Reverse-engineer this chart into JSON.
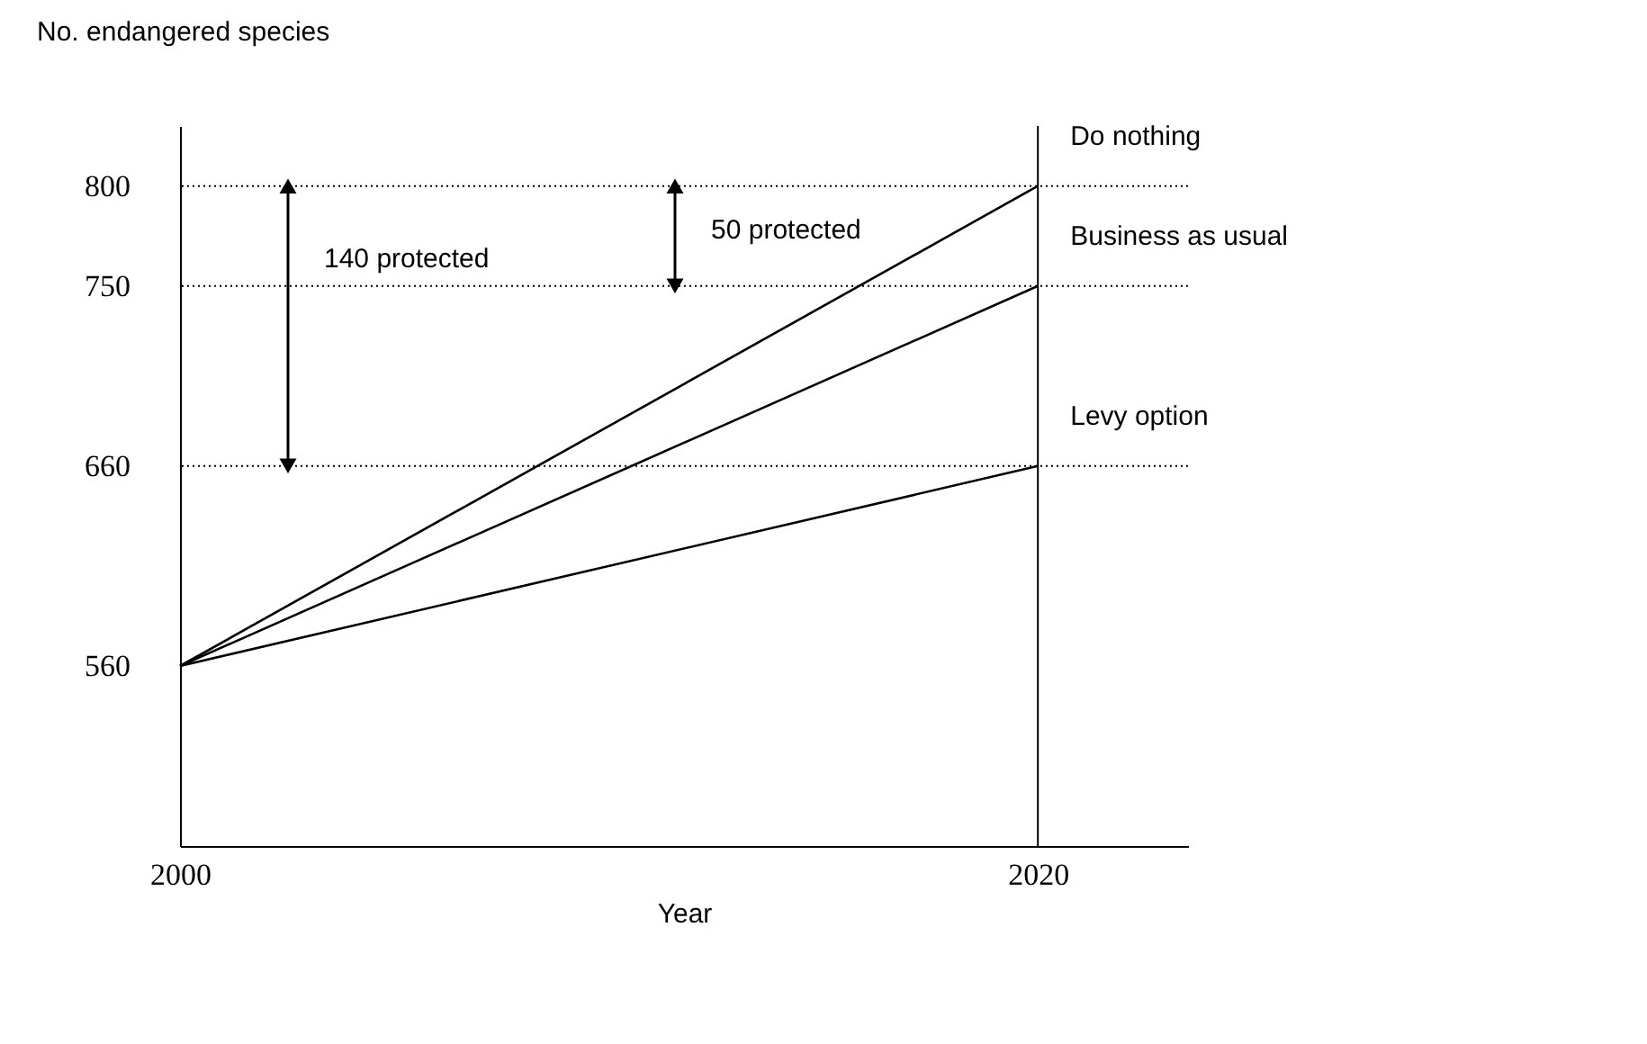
{
  "chart_data": {
    "type": "line",
    "xlabel": "Year",
    "ylabel": "No. endangered species",
    "x": [
      2000,
      2020
    ],
    "series": [
      {
        "name": "Do nothing",
        "color": "#000000",
        "values": [
          560,
          800
        ]
      },
      {
        "name": "Business as usual",
        "color": "#000000",
        "values": [
          560,
          750
        ]
      },
      {
        "name": "Levy option",
        "color": "#000000",
        "values": [
          560,
          660
        ]
      }
    ],
    "xlim": [
      2000,
      2023.5
    ],
    "xticks": [
      {
        "value": 2000,
        "label": "2000"
      },
      {
        "value": 2020,
        "label": "2020"
      }
    ],
    "ylim": [
      470,
      830
    ],
    "yticks": [
      560,
      660,
      750,
      800
    ],
    "ref_lines": [
      {
        "axis": "y",
        "value": 800,
        "line_style": "dotted",
        "color": "#000000"
      },
      {
        "axis": "y",
        "value": 750,
        "line_style": "dotted",
        "color": "#000000"
      },
      {
        "axis": "y",
        "value": 660,
        "line_style": "dotted",
        "color": "#000000"
      },
      {
        "axis": "x",
        "value": 2020,
        "line_style": "solid",
        "color": "#000000"
      }
    ],
    "annotations": [
      "140 protected",
      "50 protected"
    ],
    "grid": false,
    "legend": false,
    "marker": "none",
    "line_style": "solid"
  }
}
